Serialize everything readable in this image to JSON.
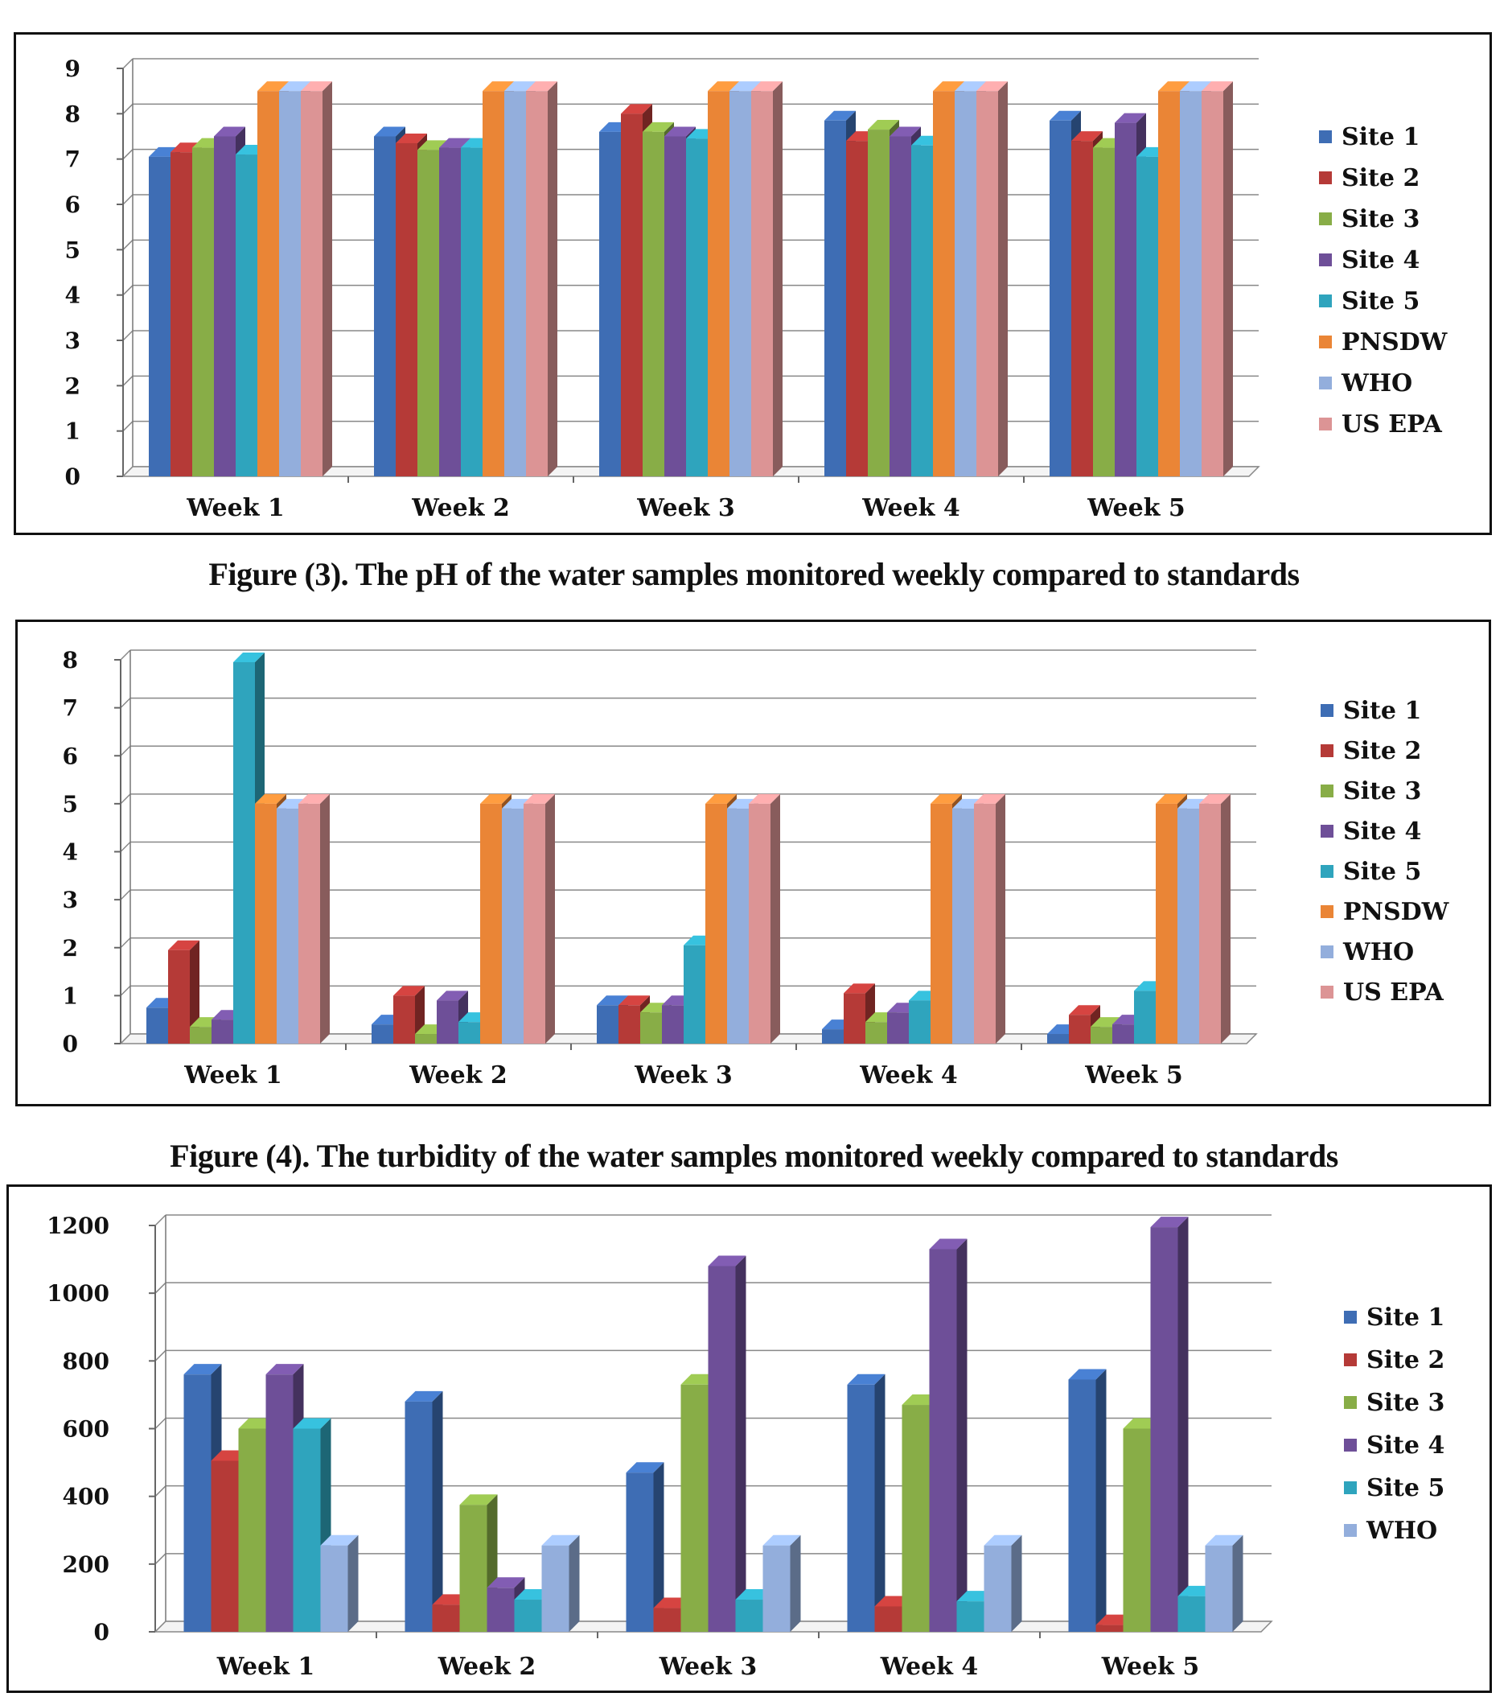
{
  "colors": {
    "Site 1": "#3e6db4",
    "Site 2": "#b53a37",
    "Site 3": "#88ad47",
    "Site 4": "#6e4f98",
    "Site 5": "#2fa4bd",
    "PNSDW": "#ea8536",
    "WHO": "#93aedc",
    "US EPA": "#dc9495"
  },
  "captions": {
    "fig3": "Figure (3). The pH of the water samples monitored weekly compared to standards",
    "fig4": "Figure (4). The turbidity of the water samples monitored weekly compared to standards"
  },
  "chart_data": [
    {
      "type": "bar",
      "categories": [
        "Week 1",
        "Week 2",
        "Week 3",
        "Week 4",
        "Week 5"
      ],
      "ylim": [
        0,
        9
      ],
      "yticks": [
        0,
        1,
        2,
        3,
        4,
        5,
        6,
        7,
        8,
        9
      ],
      "grid": true,
      "legend_position": "right",
      "series": [
        {
          "name": "Site 1",
          "values": [
            7.05,
            7.5,
            7.6,
            7.85,
            7.85
          ]
        },
        {
          "name": "Site 2",
          "values": [
            7.15,
            7.35,
            8.0,
            7.4,
            7.4
          ]
        },
        {
          "name": "Site 3",
          "values": [
            7.25,
            7.2,
            7.6,
            7.65,
            7.25
          ]
        },
        {
          "name": "Site 4",
          "values": [
            7.5,
            7.25,
            7.5,
            7.5,
            7.8
          ]
        },
        {
          "name": "Site 5",
          "values": [
            7.1,
            7.25,
            7.45,
            7.3,
            7.05
          ]
        },
        {
          "name": "PNSDW",
          "values": [
            8.5,
            8.5,
            8.5,
            8.5,
            8.5
          ]
        },
        {
          "name": "WHO",
          "values": [
            8.5,
            8.5,
            8.5,
            8.5,
            8.5
          ]
        },
        {
          "name": "US EPA",
          "values": [
            8.5,
            8.5,
            8.5,
            8.5,
            8.5
          ]
        }
      ]
    },
    {
      "type": "bar",
      "categories": [
        "Week 1",
        "Week 2",
        "Week 3",
        "Week 4",
        "Week 5"
      ],
      "ylim": [
        0,
        8
      ],
      "yticks": [
        0,
        1,
        2,
        3,
        4,
        5,
        6,
        7,
        8
      ],
      "grid": true,
      "legend_position": "right",
      "series": [
        {
          "name": "Site 1",
          "values": [
            0.75,
            0.4,
            0.8,
            0.3,
            0.2
          ]
        },
        {
          "name": "Site 2",
          "values": [
            1.95,
            1.0,
            0.8,
            1.05,
            0.6
          ]
        },
        {
          "name": "Site 3",
          "values": [
            0.35,
            0.2,
            0.65,
            0.45,
            0.35
          ]
        },
        {
          "name": "Site 4",
          "values": [
            0.5,
            0.9,
            0.8,
            0.65,
            0.4
          ]
        },
        {
          "name": "Site 5",
          "values": [
            7.95,
            0.45,
            2.05,
            0.9,
            1.1
          ]
        },
        {
          "name": "PNSDW",
          "values": [
            5.0,
            5.0,
            5.0,
            5.0,
            5.0
          ]
        },
        {
          "name": "WHO",
          "values": [
            4.9,
            4.9,
            4.9,
            4.9,
            4.9
          ]
        },
        {
          "name": "US EPA",
          "values": [
            5.0,
            5.0,
            5.0,
            5.0,
            5.0
          ]
        }
      ]
    },
    {
      "type": "bar",
      "categories": [
        "Week 1",
        "Week 2",
        "Week 3",
        "Week 4",
        "Week 5"
      ],
      "ylim": [
        0,
        1200
      ],
      "yticks": [
        0,
        200,
        400,
        600,
        800,
        1000,
        1200
      ],
      "grid": true,
      "legend_position": "right",
      "series": [
        {
          "name": "Site 1",
          "values": [
            760,
            680,
            470,
            730,
            745
          ]
        },
        {
          "name": "Site 2",
          "values": [
            505,
            80,
            70,
            75,
            20
          ]
        },
        {
          "name": "Site 3",
          "values": [
            600,
            375,
            730,
            670,
            600
          ]
        },
        {
          "name": "Site 4",
          "values": [
            760,
            130,
            1080,
            1130,
            1195
          ]
        },
        {
          "name": "Site 5",
          "values": [
            600,
            95,
            95,
            90,
            105
          ]
        },
        {
          "name": "WHO",
          "values": [
            255,
            255,
            255,
            255,
            255
          ]
        }
      ]
    }
  ]
}
